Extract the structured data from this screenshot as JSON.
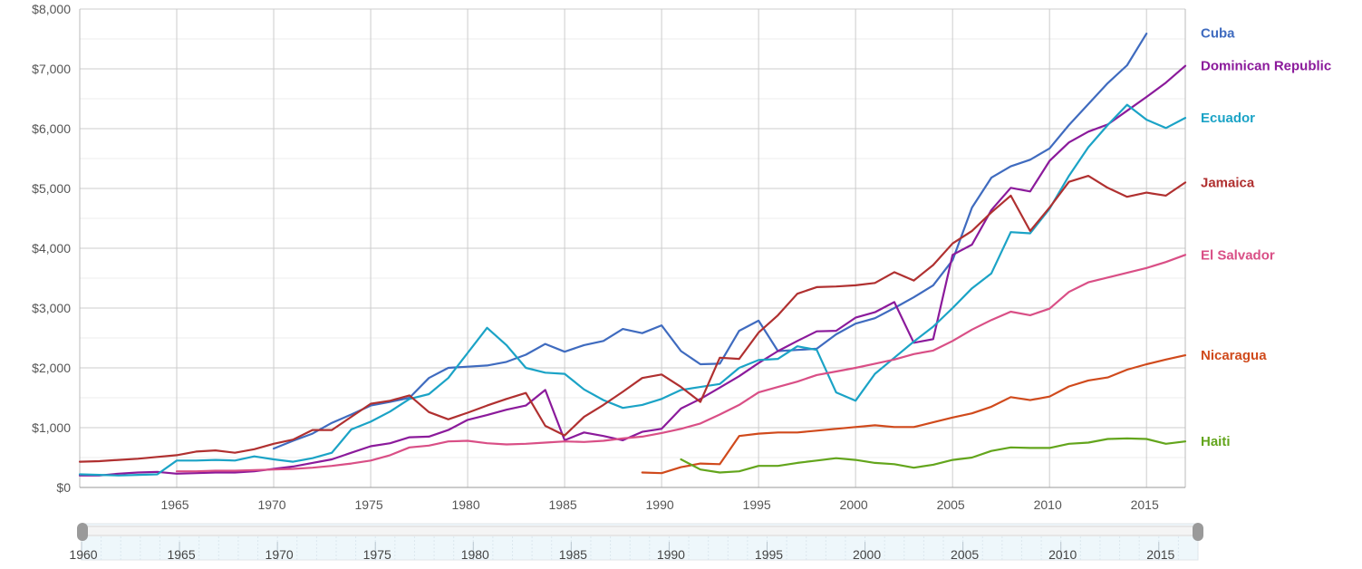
{
  "chart_data": {
    "type": "line",
    "title": "",
    "xlabel": "",
    "ylabel": "",
    "xlim": [
      1960,
      2017
    ],
    "ylim": [
      0,
      8000
    ],
    "grid": true,
    "legend_placement": "right",
    "y_ticks": [
      {
        "value": 0,
        "label": "$0"
      },
      {
        "value": 1000,
        "label": "$1,000"
      },
      {
        "value": 2000,
        "label": "$2,000"
      },
      {
        "value": 3000,
        "label": "$3,000"
      },
      {
        "value": 4000,
        "label": "$4,000"
      },
      {
        "value": 5000,
        "label": "$5,000"
      },
      {
        "value": 6000,
        "label": "$6,000"
      },
      {
        "value": 7000,
        "label": "$7,000"
      },
      {
        "value": 8000,
        "label": "$8,000"
      }
    ],
    "x_ticks": [
      "1965",
      "1970",
      "1975",
      "1980",
      "1985",
      "1990",
      "1995",
      "2000",
      "2005",
      "2010",
      "2015"
    ],
    "series": [
      {
        "name": "Cuba",
        "color": "#3f6bbf",
        "label_value": 7600,
        "x": [
          1970,
          1971,
          1972,
          1973,
          1974,
          1975,
          1976,
          1977,
          1978,
          1979,
          1980,
          1981,
          1982,
          1983,
          1984,
          1985,
          1986,
          1987,
          1988,
          1989,
          1990,
          1991,
          1992,
          1993,
          1994,
          1995,
          1996,
          1997,
          1998,
          1999,
          2000,
          2001,
          2002,
          2003,
          2004,
          2005,
          2006,
          2007,
          2008,
          2009,
          2010,
          2011,
          2012,
          2013,
          2014,
          2015
        ],
        "y": [
          650,
          780,
          900,
          1080,
          1220,
          1370,
          1430,
          1500,
          1830,
          2000,
          2020,
          2040,
          2100,
          2220,
          2400,
          2270,
          2380,
          2450,
          2650,
          2580,
          2710,
          2280,
          2060,
          2070,
          2620,
          2790,
          2280,
          2300,
          2320,
          2560,
          2740,
          2830,
          3000,
          3180,
          3380,
          3800,
          4680,
          5180,
          5370,
          5480,
          5670,
          6060,
          6410,
          6760,
          7060,
          7590
        ]
      },
      {
        "name": "Dominican Republic",
        "color": "#8b1a9b",
        "label_value": 7050,
        "x": [
          1960,
          1961,
          1962,
          1963,
          1964,
          1965,
          1966,
          1967,
          1968,
          1969,
          1970,
          1971,
          1972,
          1973,
          1974,
          1975,
          1976,
          1977,
          1978,
          1979,
          1980,
          1981,
          1982,
          1983,
          1984,
          1985,
          1986,
          1987,
          1988,
          1989,
          1990,
          1991,
          1992,
          1993,
          1994,
          1995,
          1996,
          1997,
          1998,
          1999,
          2000,
          2001,
          2002,
          2003,
          2004,
          2005,
          2006,
          2007,
          2008,
          2009,
          2010,
          2011,
          2012,
          2013,
          2014,
          2015,
          2016,
          2017
        ],
        "y": [
          200,
          200,
          230,
          250,
          260,
          230,
          240,
          250,
          250,
          270,
          310,
          350,
          410,
          470,
          580,
          690,
          740,
          840,
          850,
          960,
          1130,
          1210,
          1300,
          1370,
          1630,
          790,
          920,
          860,
          790,
          930,
          980,
          1320,
          1480,
          1670,
          1860,
          2080,
          2280,
          2450,
          2610,
          2620,
          2840,
          2930,
          3100,
          2420,
          2480,
          3890,
          4060,
          4640,
          5010,
          4950,
          5460,
          5770,
          5950,
          6070,
          6300,
          6530,
          6770,
          7050
        ]
      },
      {
        "name": "Ecuador",
        "color": "#1ba3c6",
        "label_value": 6180,
        "x": [
          1960,
          1961,
          1962,
          1963,
          1964,
          1965,
          1966,
          1967,
          1968,
          1969,
          1970,
          1971,
          1972,
          1973,
          1974,
          1975,
          1976,
          1977,
          1978,
          1979,
          1980,
          1981,
          1982,
          1983,
          1984,
          1985,
          1986,
          1987,
          1988,
          1989,
          1990,
          1991,
          1992,
          1993,
          1994,
          1995,
          1996,
          1997,
          1998,
          1999,
          2000,
          2001,
          2002,
          2003,
          2004,
          2005,
          2006,
          2007,
          2008,
          2009,
          2010,
          2011,
          2012,
          2013,
          2014,
          2015,
          2016,
          2017
        ],
        "y": [
          220,
          210,
          200,
          210,
          220,
          450,
          450,
          460,
          450,
          520,
          470,
          430,
          490,
          580,
          970,
          1100,
          1270,
          1480,
          1560,
          1830,
          2250,
          2670,
          2380,
          2000,
          1920,
          1900,
          1640,
          1460,
          1330,
          1380,
          1480,
          1630,
          1680,
          1730,
          2000,
          2130,
          2150,
          2360,
          2300,
          1590,
          1450,
          1900,
          2170,
          2440,
          2690,
          3000,
          3330,
          3580,
          4270,
          4250,
          4660,
          5210,
          5690,
          6060,
          6400,
          6150,
          6010,
          6180
        ]
      },
      {
        "name": "Jamaica",
        "color": "#b03030",
        "label_value": 5100,
        "x": [
          1960,
          1961,
          1962,
          1963,
          1964,
          1965,
          1966,
          1967,
          1968,
          1969,
          1970,
          1971,
          1972,
          1973,
          1974,
          1975,
          1976,
          1977,
          1978,
          1979,
          1980,
          1981,
          1982,
          1983,
          1984,
          1985,
          1986,
          1987,
          1988,
          1989,
          1990,
          1991,
          1992,
          1993,
          1994,
          1995,
          1996,
          1997,
          1998,
          1999,
          2000,
          2001,
          2002,
          2003,
          2004,
          2005,
          2006,
          2007,
          2008,
          2009,
          2010,
          2011,
          2012,
          2013,
          2014,
          2015,
          2016,
          2017
        ],
        "y": [
          430,
          440,
          460,
          480,
          510,
          540,
          600,
          620,
          580,
          640,
          730,
          800,
          960,
          960,
          1180,
          1400,
          1450,
          1540,
          1260,
          1140,
          1250,
          1370,
          1480,
          1580,
          1030,
          870,
          1180,
          1380,
          1600,
          1830,
          1890,
          1680,
          1430,
          2170,
          2150,
          2590,
          2880,
          3240,
          3350,
          3360,
          3380,
          3420,
          3600,
          3460,
          3720,
          4080,
          4290,
          4600,
          4880,
          4290,
          4680,
          5110,
          5210,
          5010,
          4860,
          4930,
          4880,
          5100
        ]
      },
      {
        "name": "El Salvador",
        "color": "#d94f86",
        "label_value": 3890,
        "x": [
          1965,
          1966,
          1967,
          1968,
          1969,
          1970,
          1971,
          1972,
          1973,
          1974,
          1975,
          1976,
          1977,
          1978,
          1979,
          1980,
          1981,
          1982,
          1983,
          1984,
          1985,
          1986,
          1987,
          1988,
          1989,
          1990,
          1991,
          1992,
          1993,
          1994,
          1995,
          1996,
          1997,
          1998,
          1999,
          2000,
          2001,
          2002,
          2003,
          2004,
          2005,
          2006,
          2007,
          2008,
          2009,
          2010,
          2011,
          2012,
          2013,
          2014,
          2015,
          2016,
          2017
        ],
        "y": [
          270,
          270,
          280,
          280,
          290,
          300,
          310,
          330,
          360,
          400,
          450,
          540,
          670,
          700,
          770,
          780,
          740,
          720,
          730,
          750,
          770,
          760,
          780,
          820,
          850,
          910,
          980,
          1070,
          1220,
          1380,
          1590,
          1680,
          1770,
          1880,
          1940,
          2000,
          2070,
          2140,
          2230,
          2290,
          2450,
          2640,
          2800,
          2940,
          2880,
          2990,
          3270,
          3430,
          3510,
          3590,
          3670,
          3770,
          3890
        ]
      },
      {
        "name": "Nicaragua",
        "color": "#d04a1c",
        "label_value": 2210,
        "x": [
          1989,
          1990,
          1991,
          1992,
          1993,
          1994,
          1995,
          1996,
          1997,
          1998,
          1999,
          2000,
          2001,
          2002,
          2003,
          2004,
          2005,
          2006,
          2007,
          2008,
          2009,
          2010,
          2011,
          2012,
          2013,
          2014,
          2015,
          2016,
          2017
        ],
        "y": [
          250,
          240,
          340,
          400,
          390,
          860,
          900,
          920,
          920,
          950,
          980,
          1010,
          1040,
          1010,
          1010,
          1090,
          1170,
          1240,
          1350,
          1510,
          1460,
          1520,
          1690,
          1790,
          1840,
          1970,
          2060,
          2140,
          2210
        ]
      },
      {
        "name": "Haiti",
        "color": "#63a51c",
        "label_value": 770,
        "x": [
          1991,
          1992,
          1993,
          1994,
          1995,
          1996,
          1997,
          1998,
          1999,
          2000,
          2001,
          2002,
          2003,
          2004,
          2005,
          2006,
          2007,
          2008,
          2009,
          2010,
          2011,
          2012,
          2013,
          2014,
          2015,
          2016,
          2017
        ],
        "y": [
          470,
          300,
          250,
          270,
          360,
          360,
          410,
          450,
          490,
          460,
          410,
          390,
          330,
          380,
          460,
          500,
          610,
          670,
          660,
          660,
          730,
          750,
          810,
          820,
          810,
          730,
          770
        ]
      }
    ]
  },
  "navigator": {
    "range": [
      1960,
      2017
    ],
    "ticks": [
      "1960",
      "1965",
      "1970",
      "1975",
      "1980",
      "1985",
      "1990",
      "1995",
      "2000",
      "2005",
      "2010",
      "2015"
    ]
  }
}
